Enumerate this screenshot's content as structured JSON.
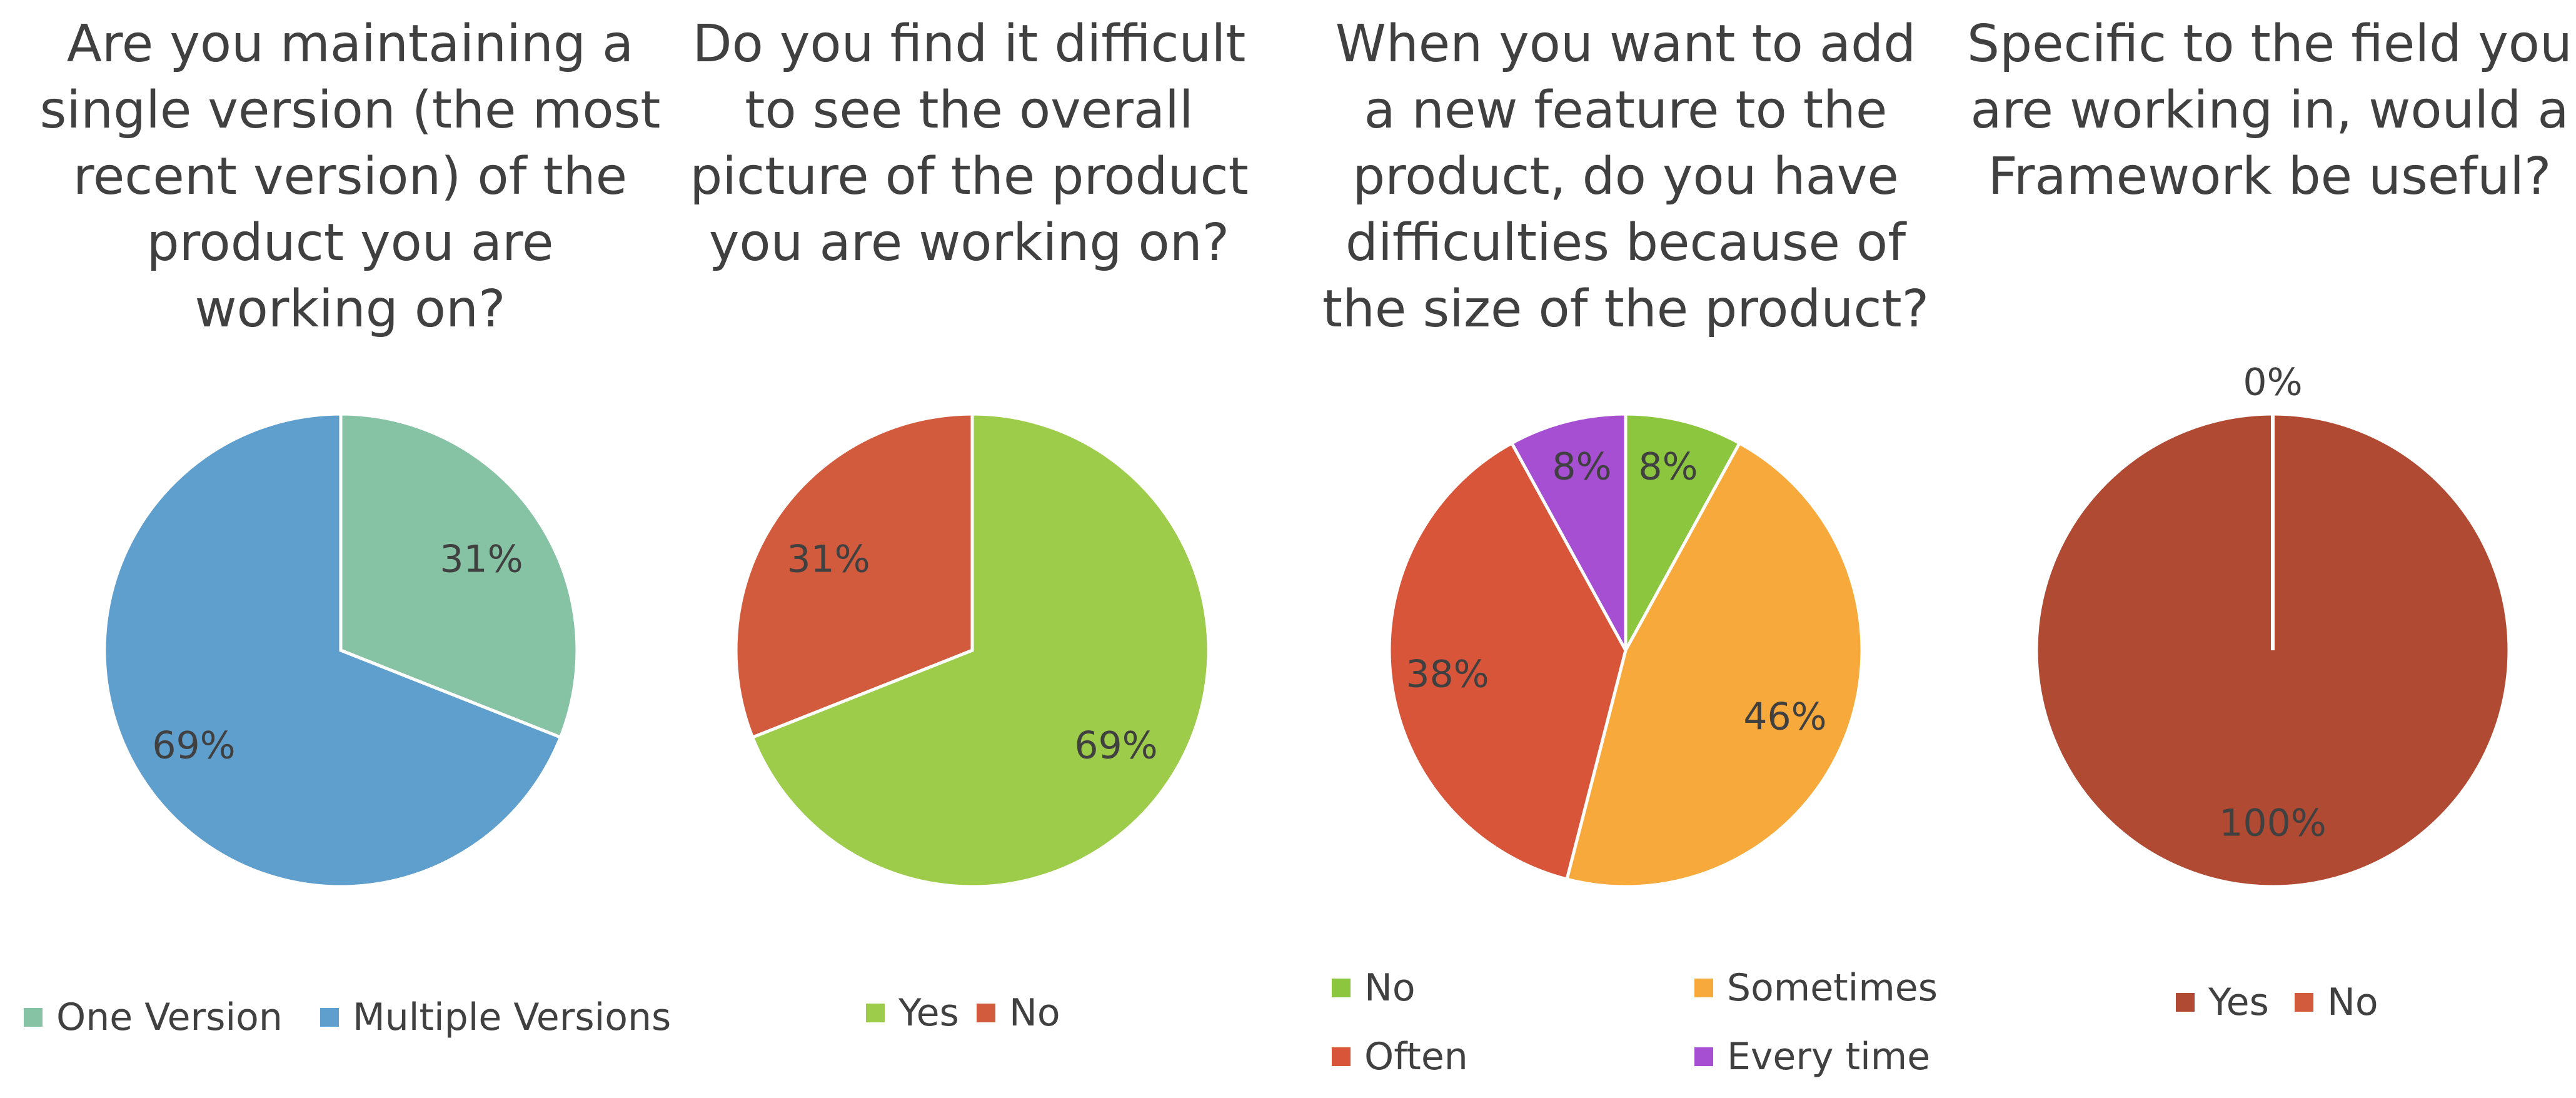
{
  "chart_data": [
    {
      "type": "pie",
      "title_lines": [
        "Are you maintaining a",
        "single version (the most",
        "recent version) of the",
        "product you are",
        "working on?"
      ],
      "categories": [
        "One Version",
        "Multiple Versions"
      ],
      "values": [
        31,
        69
      ],
      "labels": [
        "31%",
        "69%"
      ],
      "colors": [
        "#86c2a4",
        "#5f9fcd"
      ],
      "legend": "bottom"
    },
    {
      "type": "pie",
      "title_lines": [
        "Do you find it difficult",
        "to see the overall",
        "picture of the product",
        "you are working on?"
      ],
      "categories": [
        "Yes",
        "No"
      ],
      "values": [
        69,
        31
      ],
      "labels": [
        "69%",
        "31%"
      ],
      "colors": [
        "#9dcb4a",
        "#d35b3d"
      ],
      "legend": "bottom"
    },
    {
      "type": "pie",
      "title_lines": [
        "When you want to add",
        "a new feature to the",
        "product, do you have",
        "difficulties because of",
        "the size of the product?"
      ],
      "categories": [
        "No",
        "Sometimes",
        "Often",
        "Every time"
      ],
      "values": [
        8,
        46,
        38,
        8
      ],
      "labels": [
        "8%",
        "46%",
        "38%",
        "8%"
      ],
      "colors": [
        "#8cc63f",
        "#f7a93b",
        "#d9553a",
        "#a64fd2"
      ],
      "legend": "bottom"
    },
    {
      "type": "pie",
      "title_lines": [
        "Specific to the field you",
        "are working in, would a",
        "Framework be useful?"
      ],
      "categories": [
        "Yes",
        "No"
      ],
      "values": [
        100,
        0
      ],
      "labels": [
        "100%",
        "0%"
      ],
      "colors": [
        "#b04a33",
        "#d35b3d"
      ],
      "legend": "bottom"
    }
  ]
}
